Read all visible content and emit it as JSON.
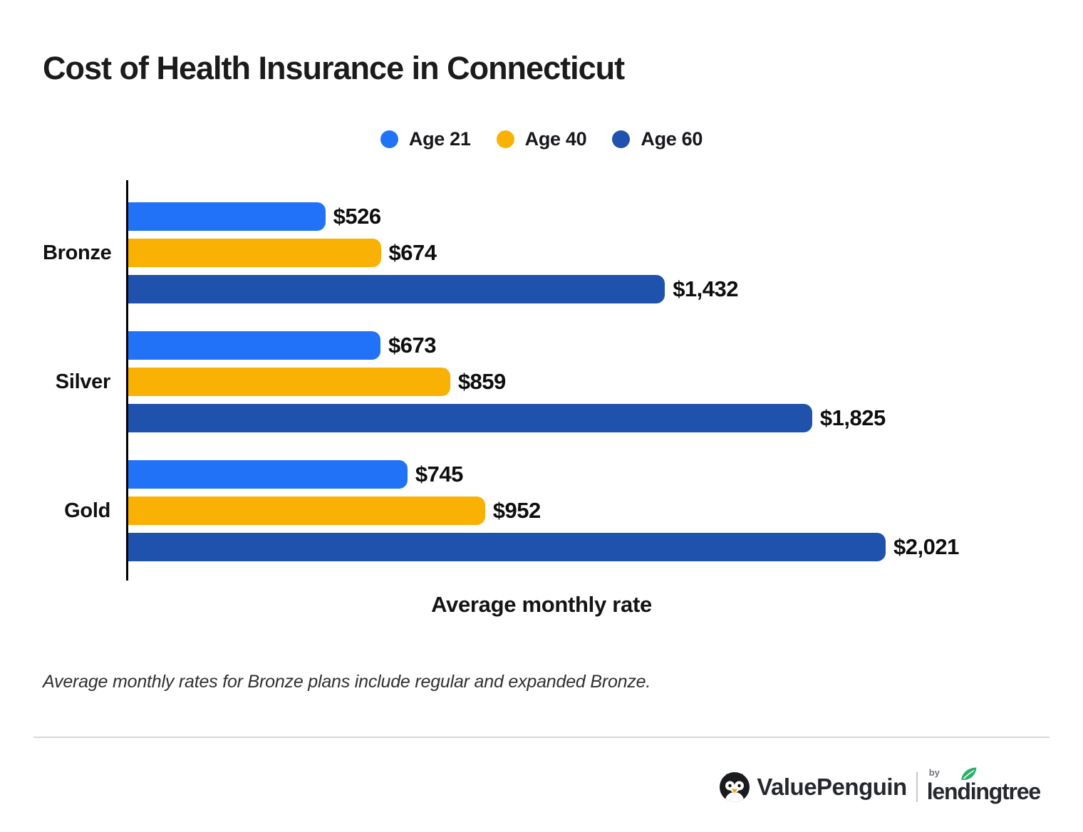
{
  "title": "Cost of Health Insurance in Connecticut",
  "legend": {
    "items": [
      {
        "label": "Age 21",
        "color": "#2272F8"
      },
      {
        "label": "Age 40",
        "color": "#F9B204"
      },
      {
        "label": "Age 60",
        "color": "#1E52AD"
      }
    ]
  },
  "chart_data": {
    "type": "bar",
    "orientation": "horizontal",
    "title": "Cost of Health Insurance in Connecticut",
    "categories": [
      "Bronze",
      "Silver",
      "Gold"
    ],
    "series": [
      {
        "name": "Age 21",
        "color": "#2272F8",
        "values": [
          526,
          673,
          745
        ],
        "labels": [
          "$526",
          "$673",
          "$745"
        ]
      },
      {
        "name": "Age 40",
        "color": "#F9B204",
        "values": [
          674,
          859,
          952
        ],
        "labels": [
          "$674",
          "$859",
          "$952"
        ]
      },
      {
        "name": "Age 60",
        "color": "#1E52AD",
        "values": [
          1432,
          1825,
          2021
        ],
        "labels": [
          "$1,432",
          "$1,825",
          "$2,021"
        ]
      }
    ],
    "xlabel": "Average monthly rate",
    "ylabel": "",
    "xlim": [
      0,
      2021
    ],
    "grid": false,
    "legend_position": "top"
  },
  "footnote": "Average monthly rates for Bronze plans include regular and expanded Bronze.",
  "branding": {
    "valuepenguin": "ValuePenguin",
    "by": "by",
    "lendingtree": "lendingtree",
    "leaf_color": "#2EAE6B",
    "text_color": "#26282e"
  }
}
